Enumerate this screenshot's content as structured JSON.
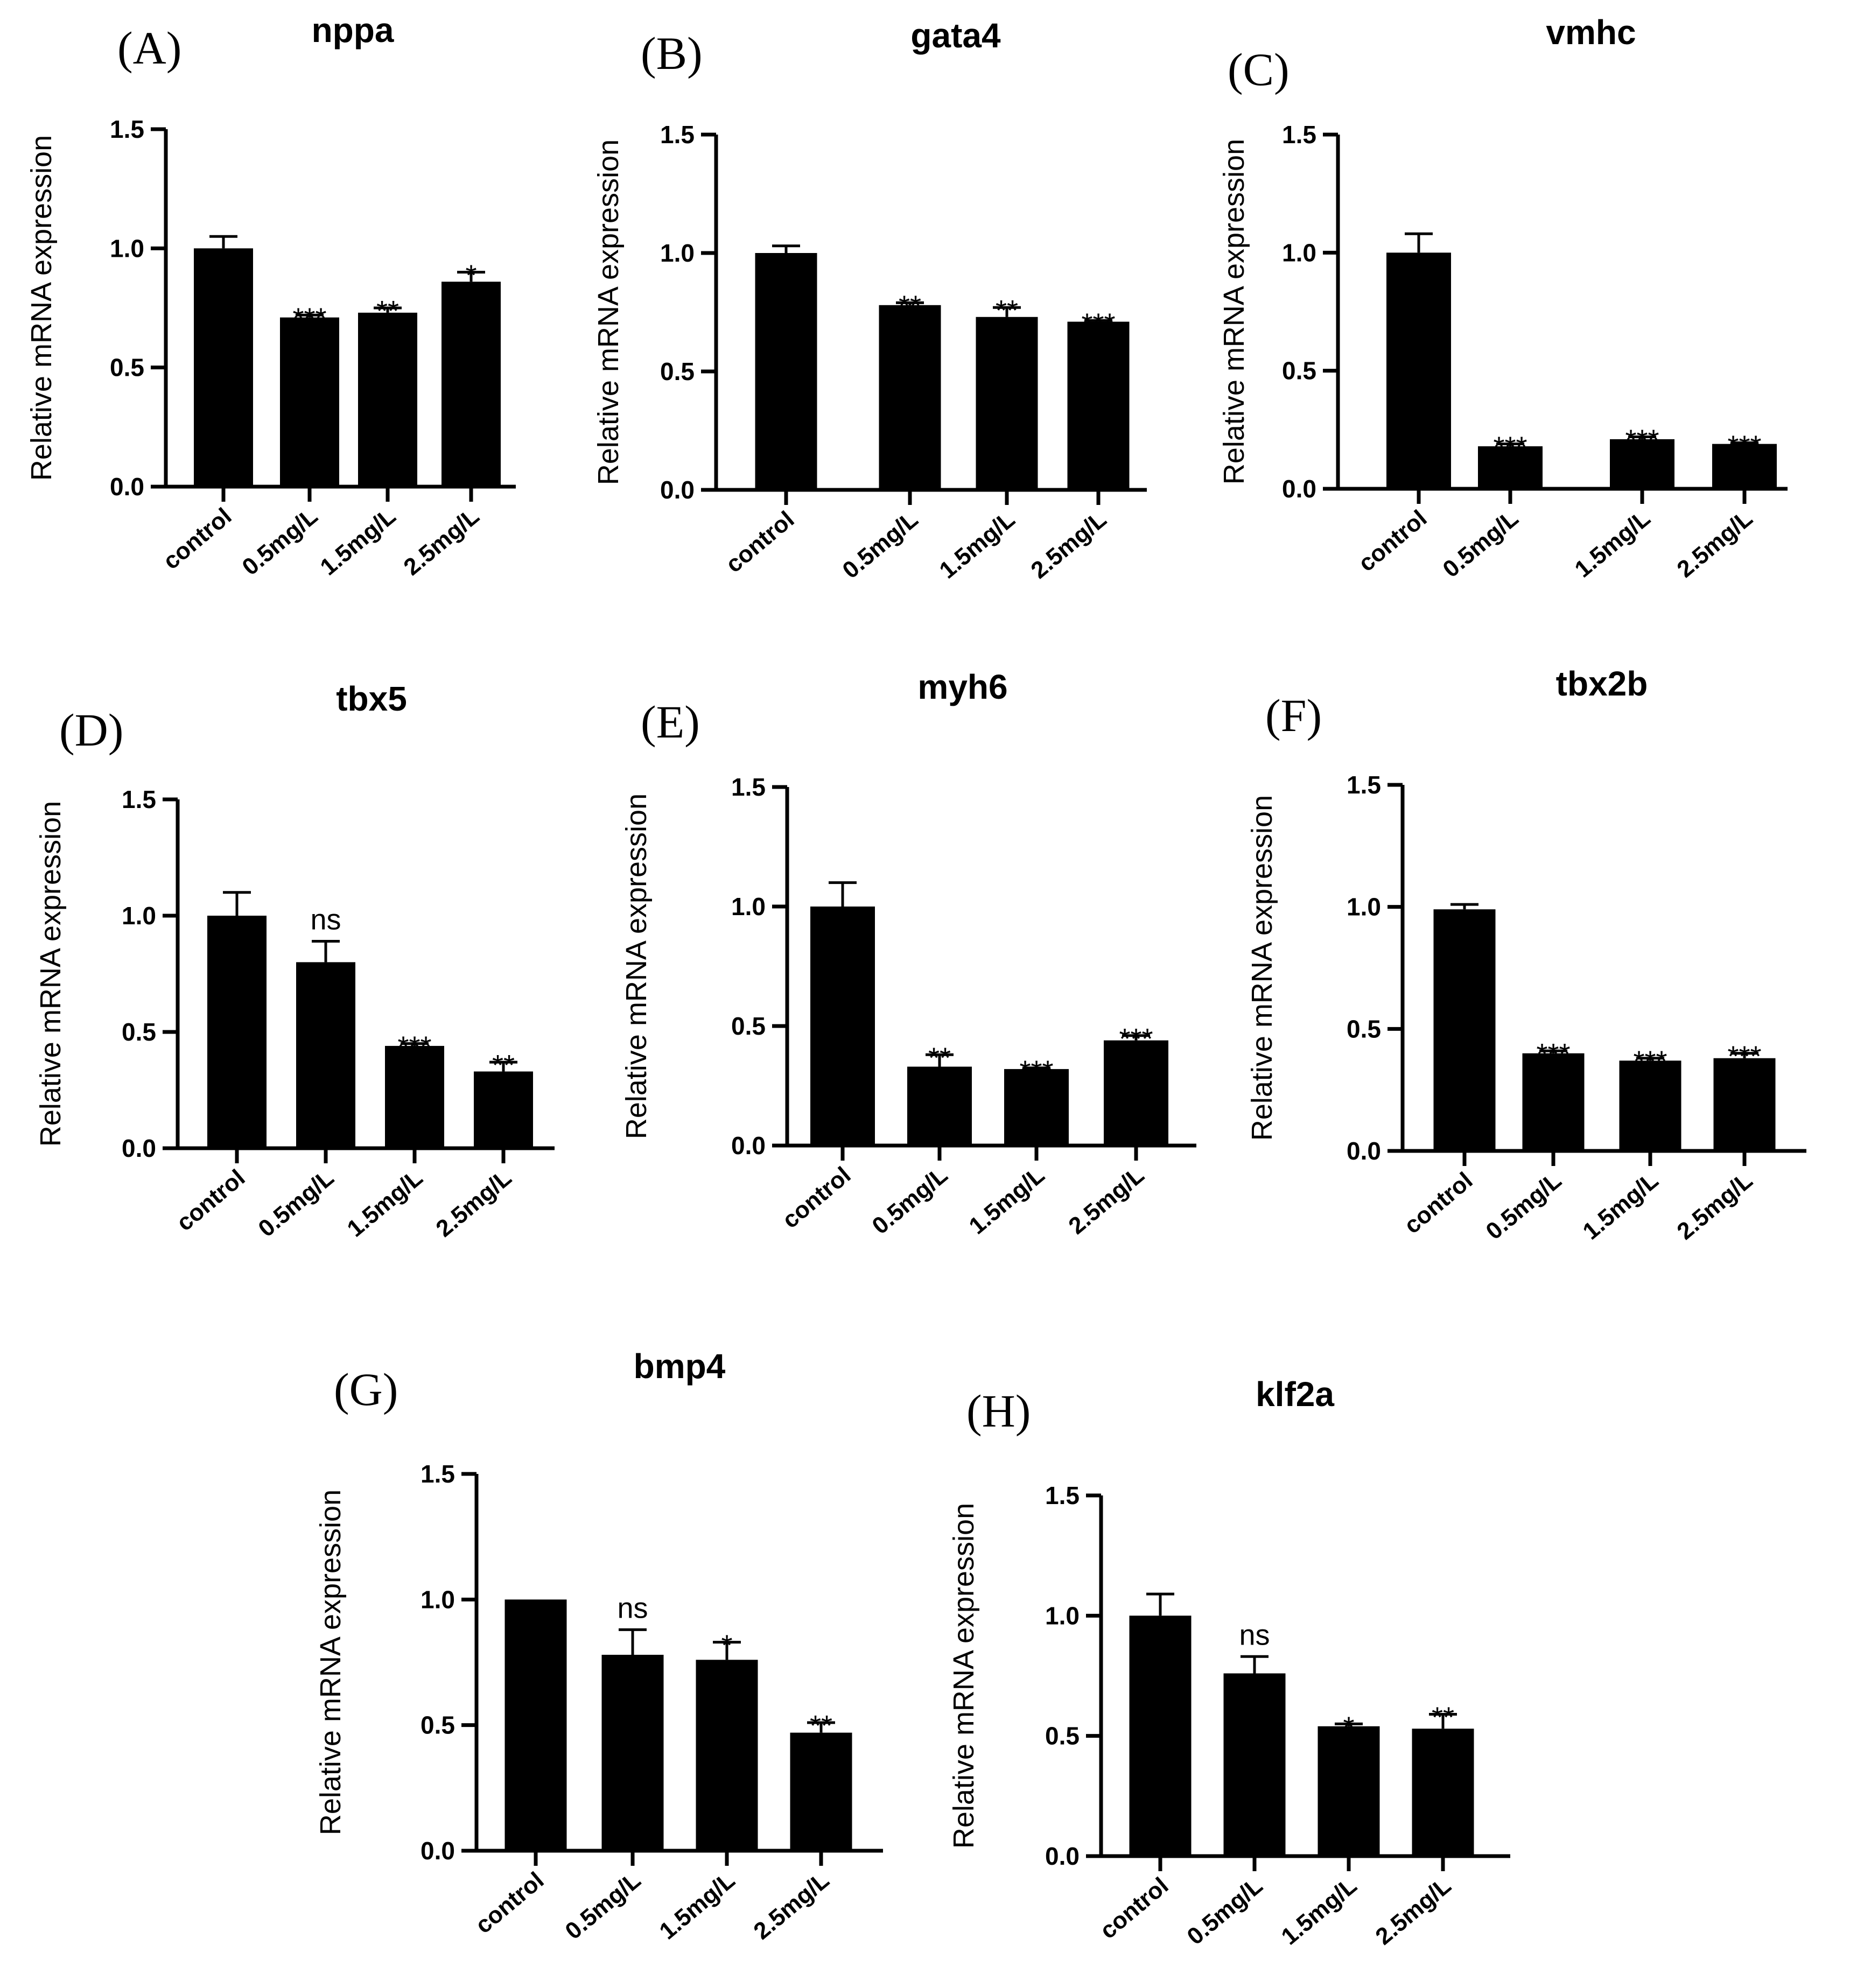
{
  "chart_data": [
    {
      "panel": "(A)",
      "title": "nppa",
      "type": "bar",
      "ylabel": "Relative mRNA expression",
      "ylim": [
        0,
        1.5
      ],
      "yticks": [
        "0.0",
        "0.5",
        "1.0",
        "1.5"
      ],
      "categories": [
        "control",
        "0.5mg/L",
        "1.5mg/L",
        "2.5mg/L"
      ],
      "values": [
        1.0,
        0.71,
        0.73,
        0.86
      ],
      "errors": [
        0.05,
        0.01,
        0.02,
        0.04
      ],
      "significance": [
        "",
        "***",
        "**",
        "*"
      ]
    },
    {
      "panel": "(B)",
      "title": "gata4",
      "type": "bar",
      "ylabel": "Relative mRNA expression",
      "ylim": [
        0,
        1.5
      ],
      "yticks": [
        "0.0",
        "0.5",
        "1.0",
        "1.5"
      ],
      "categories": [
        "control",
        "0.5mg/L",
        "1.5mg/L",
        "2.5mg/L"
      ],
      "values": [
        1.0,
        0.78,
        0.73,
        0.71
      ],
      "errors": [
        0.03,
        0.01,
        0.04,
        0.005
      ],
      "significance": [
        "",
        "**",
        "**",
        "***"
      ]
    },
    {
      "panel": "(C)",
      "title": "vmhc",
      "type": "bar",
      "ylabel": "Relative mRNA expression",
      "ylim": [
        0,
        1.5
      ],
      "yticks": [
        "0.0",
        "0.5",
        "1.0",
        "1.5"
      ],
      "categories": [
        "control",
        "0.5mg/L",
        "1.5mg/L",
        "2.5mg/L"
      ],
      "values": [
        1.0,
        0.18,
        0.21,
        0.19
      ],
      "errors": [
        0.08,
        0.01,
        0.01,
        0.005
      ],
      "significance": [
        "",
        "***",
        "***",
        "***"
      ]
    },
    {
      "panel": "(D)",
      "title": "tbx5",
      "type": "bar",
      "ylabel": "Relative mRNA expression",
      "ylim": [
        0,
        1.5
      ],
      "yticks": [
        "0.0",
        "0.5",
        "1.0",
        "1.5"
      ],
      "categories": [
        "control",
        "0.5mg/L",
        "1.5mg/L",
        "2.5mg/L"
      ],
      "values": [
        1.0,
        0.8,
        0.44,
        0.33
      ],
      "errors": [
        0.1,
        0.09,
        0.01,
        0.04
      ],
      "significance": [
        "",
        "ns",
        "***",
        "**"
      ]
    },
    {
      "panel": "(E)",
      "title": "myh6",
      "type": "bar",
      "ylabel": "Relative mRNA expression",
      "ylim": [
        0,
        1.5
      ],
      "yticks": [
        "0.0",
        "0.5",
        "1.0",
        "1.5"
      ],
      "categories": [
        "control",
        "0.5mg/L",
        "1.5mg/L",
        "2.5mg/L"
      ],
      "values": [
        1.0,
        0.33,
        0.32,
        0.44
      ],
      "errors": [
        0.1,
        0.05,
        0.005,
        0.02
      ],
      "significance": [
        "",
        "**",
        "***",
        "***"
      ]
    },
    {
      "panel": "(F)",
      "title": "tbx2b",
      "type": "bar",
      "ylabel": "Relative mRNA expression",
      "ylim": [
        0,
        1.5
      ],
      "yticks": [
        "0.0",
        "0.5",
        "1.0",
        "1.5"
      ],
      "categories": [
        "control",
        "0.5mg/L",
        "1.5mg/L",
        "2.5mg/L"
      ],
      "values": [
        0.99,
        0.4,
        0.37,
        0.38
      ],
      "errors": [
        0.02,
        0.01,
        0.01,
        0.02
      ],
      "significance": [
        "",
        "***",
        "***",
        "***"
      ]
    },
    {
      "panel": "(G)",
      "title": "bmp4",
      "type": "bar",
      "ylabel": "Relative mRNA expression",
      "ylim": [
        0,
        1.5
      ],
      "yticks": [
        "0.0",
        "0.5",
        "1.0",
        "1.5"
      ],
      "categories": [
        "control",
        "0.5mg/L",
        "1.5mg/L",
        "2.5mg/L"
      ],
      "values": [
        1.0,
        0.78,
        0.76,
        0.47
      ],
      "errors": [
        0.0,
        0.1,
        0.07,
        0.04
      ],
      "significance": [
        "",
        "ns",
        "*",
        "**"
      ]
    },
    {
      "panel": "(H)",
      "title": "klf2a",
      "type": "bar",
      "ylabel": "Relative mRNA expression",
      "ylim": [
        0,
        1.5
      ],
      "yticks": [
        "0.0",
        "0.5",
        "1.0",
        "1.5"
      ],
      "categories": [
        "control",
        "0.5mg/L",
        "1.5mg/L",
        "2.5mg/L"
      ],
      "values": [
        1.0,
        0.76,
        0.54,
        0.53
      ],
      "errors": [
        0.09,
        0.07,
        0.01,
        0.06
      ],
      "significance": [
        "",
        "ns",
        "*",
        "**"
      ]
    }
  ]
}
